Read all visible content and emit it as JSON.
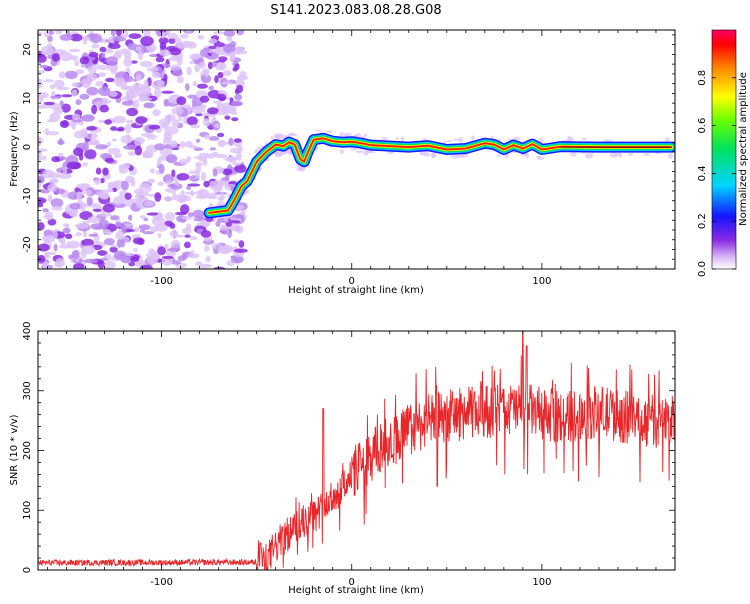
{
  "figure_title": "S141.2023.083.08.28.G08",
  "chart_data": [
    {
      "type": "heatmap",
      "title": "",
      "xlabel": "Height of straight line (km)",
      "ylabel": "Frequency (Hz)",
      "xlim": [
        -165,
        170
      ],
      "ylim": [
        -25,
        24
      ],
      "xticks": [
        -100,
        0,
        100
      ],
      "yticks": [
        -20,
        -10,
        0,
        10,
        20
      ],
      "noise_region_x": [
        -165,
        -57
      ],
      "colorbar": {
        "label": "Normalized spectral amplitude",
        "range": [
          0,
          1
        ],
        "ticks": [
          "0.0",
          "0.2",
          "0.4",
          "0.6",
          "0.8"
        ],
        "tick_values": [
          0.0,
          0.2,
          0.4,
          0.6,
          0.8
        ]
      },
      "ridge": {
        "x": [
          -75,
          -65,
          -62,
          -58,
          -55,
          -50,
          -45,
          -40,
          -36,
          -33,
          -30,
          -27,
          -25,
          -23,
          -20,
          -15,
          -10,
          -5,
          0,
          5,
          10,
          20,
          30,
          40,
          50,
          60,
          70,
          75,
          80,
          85,
          90,
          95,
          100,
          110,
          130,
          150,
          168
        ],
        "y": [
          -13.5,
          -13,
          -11,
          -8,
          -7,
          -3,
          -1,
          0.5,
          0.2,
          1,
          0.5,
          -2.5,
          -3,
          -1,
          1.5,
          1.8,
          1.2,
          1,
          1.1,
          0.8,
          0.4,
          0.2,
          0,
          0.3,
          -0.5,
          -0.3,
          0.8,
          0.5,
          -0.5,
          0.4,
          -0.3,
          0.6,
          -0.5,
          0.1,
          0,
          0,
          0
        ]
      }
    },
    {
      "type": "line",
      "title": "",
      "xlabel": "Height of straight line (km)",
      "ylabel": "SNR (10 * v/v)",
      "xlim": [
        -165,
        170
      ],
      "ylim": [
        0,
        400
      ],
      "xticks": [
        -100,
        0,
        100
      ],
      "yticks": [
        0,
        100,
        200,
        300,
        400
      ],
      "series": [
        {
          "name": "SNR",
          "color": "#e8262a",
          "trend_x": [
            -165,
            -50,
            -45,
            -40,
            -30,
            -20,
            -10,
            0,
            10,
            20,
            30,
            40,
            50,
            60,
            70,
            80,
            90,
            100,
            110,
            120,
            130,
            140,
            150,
            160,
            170
          ],
          "trend_y": [
            12,
            13,
            15,
            40,
            70,
            90,
            120,
            160,
            190,
            215,
            235,
            250,
            258,
            262,
            265,
            268,
            270,
            262,
            255,
            260,
            265,
            258,
            252,
            248,
            250
          ],
          "spikes": [
            [
              -15,
              270
            ],
            [
              68,
              315
            ],
            [
              90,
              405
            ],
            [
              92,
              375
            ],
            [
              45,
              140
            ],
            [
              -48,
              45
            ]
          ]
        }
      ]
    }
  ]
}
